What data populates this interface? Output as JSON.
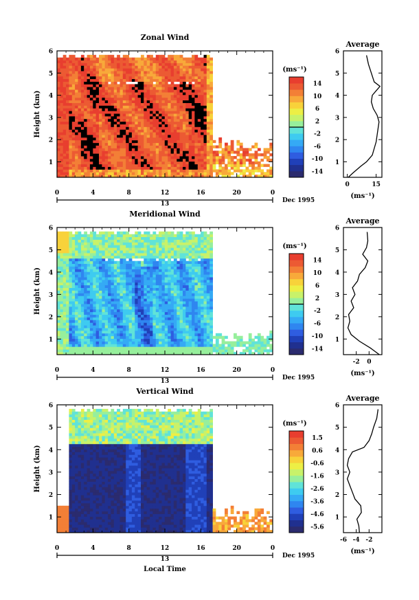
{
  "figure": {
    "date_label": "Dec 1995",
    "xlabel": "Local Time",
    "day_label": "13",
    "x_ticks": [
      "0",
      "4",
      "8",
      "12",
      "16",
      "20",
      "0"
    ],
    "y_ticks": [
      "1",
      "2",
      "3",
      "4",
      "5",
      "6"
    ],
    "ylabel": "Height (km)",
    "avg_title": "Average",
    "unit": "(ms⁻¹)"
  },
  "chart_data": [
    {
      "type": "heatmap",
      "title": "Zonal Wind",
      "xlabel": "",
      "ylabel": "Height (km)",
      "xlim": [
        0,
        24
      ],
      "ylim": [
        0.3,
        6
      ],
      "x_ticks": [
        0,
        4,
        8,
        12,
        16,
        20,
        24
      ],
      "y_ticks": [
        1,
        2,
        3,
        4,
        5,
        6
      ],
      "data_extent": {
        "time_start": 1.0,
        "time_end_high": 17.0,
        "height_top_early": 5.8,
        "height_top_late": 2.0
      },
      "colorbar": {
        "label": "(ms⁻¹)",
        "range": [
          -16,
          16
        ],
        "ticks": [
          "14",
          "10",
          "6",
          "2",
          "-2",
          "-6",
          "-10",
          "-14"
        ]
      },
      "dominant_value_range_ms": [
        8,
        16
      ],
      "average_profile": {
        "xlabel": "(ms⁻¹)",
        "xlim": [
          -2,
          18
        ],
        "x_ticks": [
          "0",
          "15"
        ],
        "y_ticks": [
          "1",
          "2",
          "3",
          "4",
          "5",
          "6"
        ],
        "height": [
          0.3,
          0.5,
          0.8,
          1.0,
          1.3,
          1.6,
          1.9,
          2.2,
          2.5,
          2.8,
          3.1,
          3.4,
          3.7,
          4.0,
          4.2,
          4.4,
          4.6,
          5.0,
          5.4,
          5.8
        ],
        "value": [
          0.5,
          3.0,
          7.0,
          10.0,
          13.0,
          14.0,
          15.0,
          15.5,
          16.0,
          16.5,
          15.5,
          13.5,
          12.5,
          13.0,
          15.0,
          17.0,
          14.0,
          12.5,
          11.0,
          10.0
        ]
      }
    },
    {
      "type": "heatmap",
      "title": "Meridional Wind",
      "xlabel": "",
      "ylabel": "Height (km)",
      "xlim": [
        0,
        24
      ],
      "ylim": [
        0.3,
        6
      ],
      "x_ticks": [
        0,
        4,
        8,
        12,
        16,
        20,
        24
      ],
      "y_ticks": [
        1,
        2,
        3,
        4,
        5,
        6
      ],
      "data_extent": {
        "time_start": 1.0,
        "time_end_high": 17.0,
        "height_top_early": 5.8,
        "height_top_late": 1.3
      },
      "colorbar": {
        "label": "(ms⁻¹)",
        "range": [
          -16,
          16
        ],
        "ticks": [
          "14",
          "10",
          "6",
          "2",
          "-2",
          "-6",
          "-10",
          "-14"
        ]
      },
      "dominant_value_range_ms": [
        -10,
        2
      ],
      "average_profile": {
        "xlabel": "(ms⁻¹)",
        "xlim": [
          -4,
          2
        ],
        "x_ticks": [
          "-2",
          "0"
        ],
        "y_ticks": [
          "1",
          "2",
          "3",
          "4",
          "5",
          "6"
        ],
        "height": [
          0.3,
          0.6,
          0.9,
          1.2,
          1.5,
          1.8,
          2.1,
          2.4,
          2.7,
          3.0,
          3.3,
          3.6,
          3.9,
          4.2,
          4.5,
          4.8,
          5.1,
          5.4,
          5.8
        ],
        "value": [
          1.6,
          0.2,
          -1.5,
          -2.8,
          -3.3,
          -3.0,
          -3.2,
          -2.4,
          -2.8,
          -2.2,
          -2.6,
          -1.8,
          -1.5,
          -0.6,
          -0.2,
          -1.0,
          -0.4,
          -0.2,
          -0.3
        ]
      }
    },
    {
      "type": "heatmap",
      "title": "Vertical Wind",
      "xlabel": "Local Time",
      "ylabel": "Height (km)",
      "xlim": [
        0,
        24
      ],
      "ylim": [
        0.3,
        6
      ],
      "x_ticks": [
        0,
        4,
        8,
        12,
        16,
        20,
        24
      ],
      "y_ticks": [
        1,
        2,
        3,
        4,
        5,
        6
      ],
      "data_extent": {
        "time_start": 1.0,
        "time_end_high": 17.0,
        "height_top_early": 5.8,
        "height_top_late": 1.4
      },
      "colorbar": {
        "label": "(ms⁻¹)",
        "range": [
          -6.0,
          2.0
        ],
        "ticks": [
          "1.5",
          "0.6",
          "-0.6",
          "-1.6",
          "-2.6",
          "-3.6",
          "-4.6",
          "-5.6"
        ]
      },
      "dominant_value_range_ms": [
        -6,
        -4
      ],
      "average_profile": {
        "xlabel": "(ms⁻¹)",
        "xlim": [
          -6,
          0
        ],
        "x_ticks": [
          "-6",
          "-4",
          "-2"
        ],
        "y_ticks": [
          "1",
          "2",
          "3",
          "4",
          "5",
          "6"
        ],
        "height": [
          0.3,
          0.6,
          0.9,
          1.2,
          1.5,
          1.8,
          2.1,
          2.4,
          2.7,
          3.0,
          3.3,
          3.6,
          3.9,
          4.1,
          4.4,
          4.7,
          5.0,
          5.4,
          5.8
        ],
        "value": [
          -3.5,
          -3.6,
          -3.9,
          -3.2,
          -3.3,
          -4.2,
          -4.6,
          -5.0,
          -5.4,
          -5.0,
          -5.4,
          -5.2,
          -4.6,
          -2.8,
          -2.0,
          -1.6,
          -1.3,
          -0.8,
          -0.6
        ]
      }
    }
  ]
}
